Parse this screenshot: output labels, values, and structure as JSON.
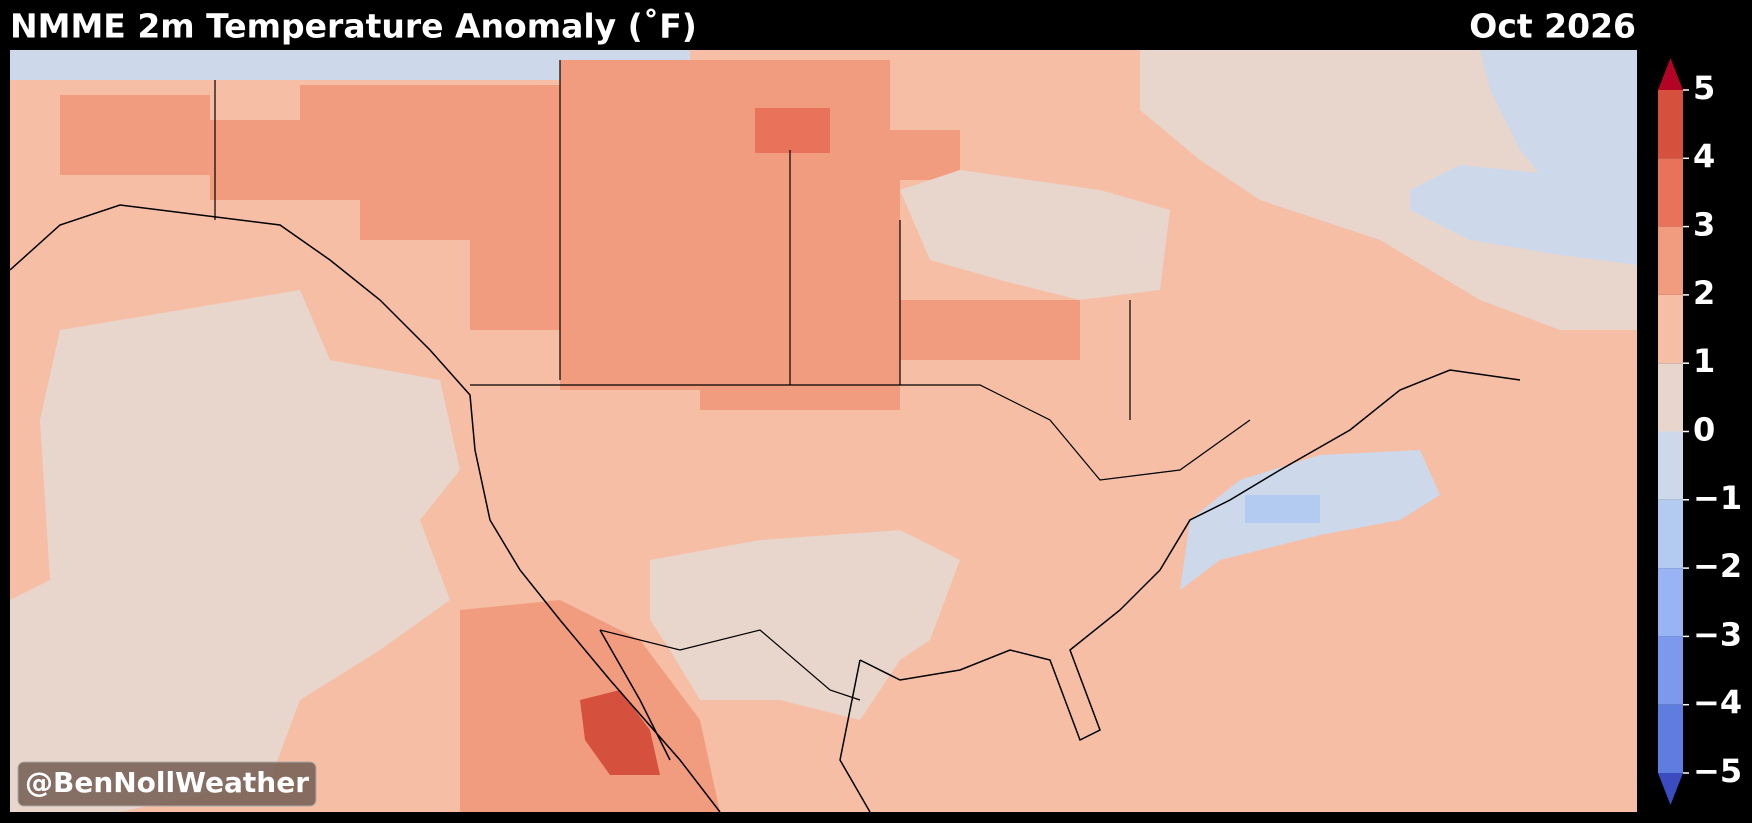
{
  "header": {
    "title": "NMME 2m Temperature Anomaly (˚F)",
    "date": "Oct 2026"
  },
  "watermark": "@BenNollWeather",
  "colorbar": {
    "ticks": [
      5,
      4,
      3,
      2,
      1,
      0,
      {
        "value": -1,
        "label": "−1"
      },
      {
        "value": -2,
        "label": "−2"
      },
      {
        "value": -3,
        "label": "−3"
      },
      {
        "value": -4,
        "label": "−4"
      },
      {
        "value": -5,
        "label": "−5"
      }
    ],
    "colors": [
      "#d6503e",
      "#e8735a",
      "#f19c7e",
      "#f5bea5",
      "#e8d6cc",
      "#cdd9ea",
      "#b4cbf1",
      "#99b4f5",
      "#7d99ee",
      "#5f7de0"
    ],
    "extend_colors": [
      "#b40426",
      "#3b4cc0"
    ]
  }
}
